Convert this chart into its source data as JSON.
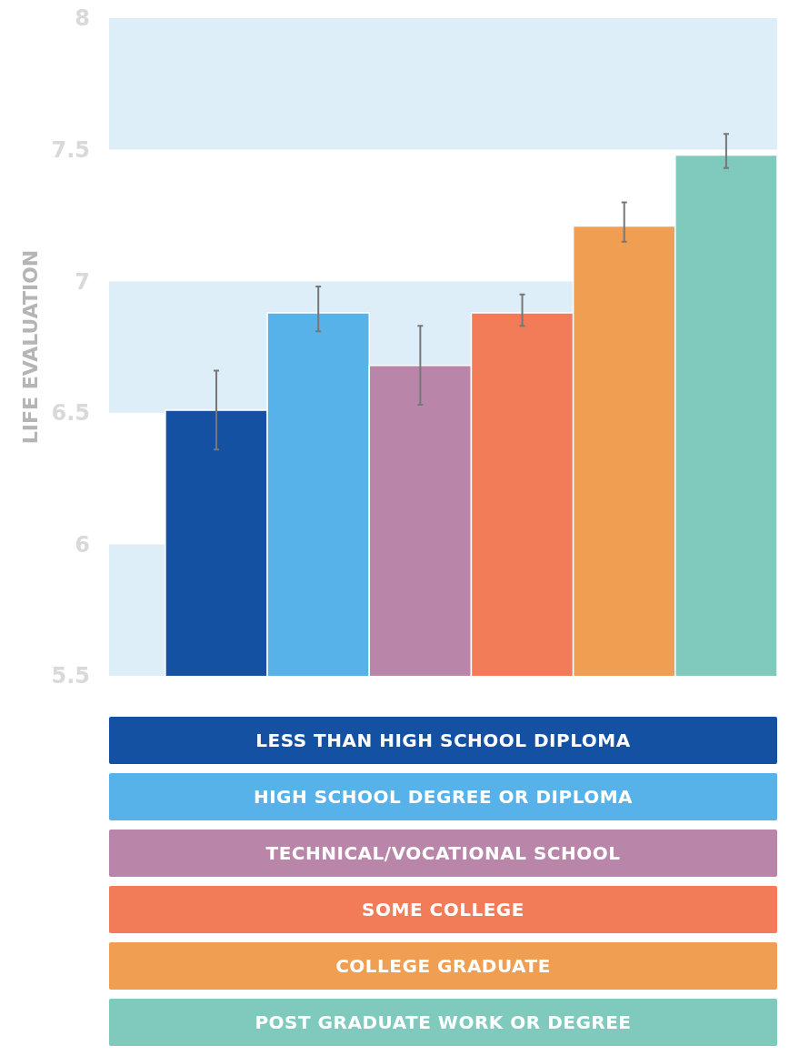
{
  "chart_data": {
    "type": "bar",
    "ylabel": "LIFE EVALUATION",
    "categories": [
      null
    ],
    "series": [
      {
        "name": "LESS THAN HIGH SCHOOL DIPLOMA",
        "color": "#1551a3",
        "values": [
          6.51
        ],
        "errors": [
          [
            6.36,
            6.66
          ]
        ]
      },
      {
        "name": "HIGH SCHOOL DEGREE OR DIPLOMA",
        "color": "#56b2e8",
        "values": [
          6.88
        ],
        "errors": [
          [
            6.81,
            6.98
          ]
        ]
      },
      {
        "name": "TECHNICAL/VOCATIONAL SCHOOL",
        "color": "#b986a9",
        "values": [
          6.68
        ],
        "errors": [
          [
            6.53,
            6.83
          ]
        ]
      },
      {
        "name": "SOME COLLEGE",
        "color": "#f27c58",
        "values": [
          6.88
        ],
        "errors": [
          [
            6.83,
            6.95
          ]
        ]
      },
      {
        "name": "COLLEGE GRADUATE",
        "color": "#f09e52",
        "values": [
          7.21
        ],
        "errors": [
          [
            7.15,
            7.3
          ]
        ]
      },
      {
        "name": "POST GRADUATE WORK OR DEGREE",
        "color": "#80c9bd",
        "values": [
          7.48
        ],
        "errors": [
          [
            7.43,
            7.56
          ]
        ]
      }
    ],
    "ylim": [
      5.5,
      8
    ],
    "yticks": [
      5.5,
      6,
      6.5,
      7,
      7.5,
      8
    ],
    "bands": [
      {
        "axis": "y",
        "from": 5.5,
        "to": 6,
        "color": "#ddeef8"
      },
      {
        "axis": "y",
        "from": 6.5,
        "to": 7,
        "color": "#ddeef8"
      },
      {
        "axis": "y",
        "from": 7.5,
        "to": 8,
        "color": "#ddeef8"
      }
    ],
    "grid": false,
    "legend": "bottom"
  }
}
